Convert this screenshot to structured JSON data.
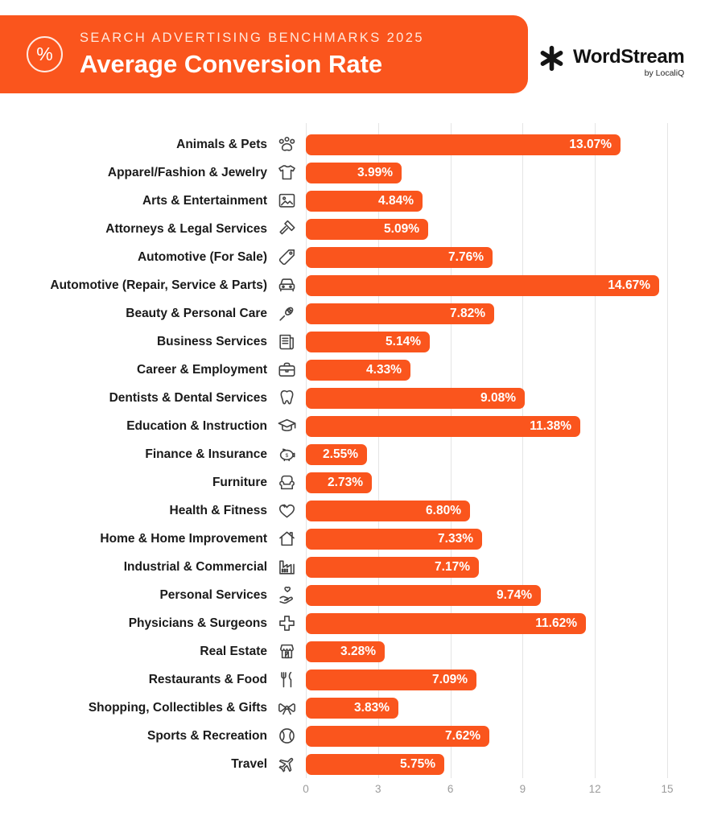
{
  "header": {
    "badge_icon": "percent-icon",
    "badge_glyph": "%",
    "eyebrow": "SEARCH ADVERTISING BENCHMARKS 2025",
    "title": "Average Conversion Rate",
    "banner_color": "#FA551D"
  },
  "logo": {
    "icon": "wordstream-asterisk-icon",
    "name": "WordStream",
    "byline": "by LocaliQ"
  },
  "chart_data": {
    "type": "bar",
    "orientation": "horizontal",
    "title": "Average Conversion Rate",
    "xlabel": "",
    "ylabel": "",
    "xlim": [
      0,
      15
    ],
    "x_ticks": [
      0,
      3,
      6,
      9,
      12,
      15
    ],
    "grid": true,
    "legend": false,
    "bar_color": "#FA551D",
    "value_format": "percent",
    "categories": [
      "Animals & Pets",
      "Apparel/Fashion & Jewelry",
      "Arts & Entertainment",
      "Attorneys & Legal Services",
      "Automotive (For Sale)",
      "Automotive (Repair, Service & Parts)",
      "Beauty & Personal Care",
      "Business Services",
      "Career & Employment",
      "Dentists & Dental Services",
      "Education & Instruction",
      "Finance & Insurance",
      "Furniture",
      "Health & Fitness",
      "Home & Home Improvement",
      "Industrial & Commercial",
      "Personal Services",
      "Physicians & Surgeons",
      "Real Estate",
      "Restaurants & Food",
      "Shopping, Collectibles & Gifts",
      "Sports & Recreation",
      "Travel"
    ],
    "values": [
      13.07,
      3.99,
      4.84,
      5.09,
      7.76,
      14.67,
      7.82,
      5.14,
      4.33,
      9.08,
      11.38,
      2.55,
      2.73,
      6.8,
      7.33,
      7.17,
      9.74,
      11.62,
      3.28,
      7.09,
      3.83,
      7.62,
      5.75
    ],
    "value_labels": [
      "13.07%",
      "3.99%",
      "4.84%",
      "5.09%",
      "7.76%",
      "14.67%",
      "7.82%",
      "5.14%",
      "4.33%",
      "9.08%",
      "11.38%",
      "2.55%",
      "2.73%",
      "6.80%",
      "7.33%",
      "7.17%",
      "9.74%",
      "11.62%",
      "3.28%",
      "7.09%",
      "3.83%",
      "7.62%",
      "5.75%"
    ],
    "icons": [
      "paw-icon",
      "tshirt-icon",
      "picture-frame-icon",
      "gavel-icon",
      "price-tag-icon",
      "car-icon",
      "hairbrush-icon",
      "newspaper-icon",
      "briefcase-icon",
      "tooth-icon",
      "graduation-cap-icon",
      "piggy-bank-icon",
      "armchair-icon",
      "heart-plus-icon",
      "house-icon",
      "factory-icon",
      "hand-heart-icon",
      "medical-cross-icon",
      "storefront-icon",
      "cutlery-icon",
      "gift-bow-icon",
      "ball-icon",
      "airplane-icon"
    ]
  }
}
